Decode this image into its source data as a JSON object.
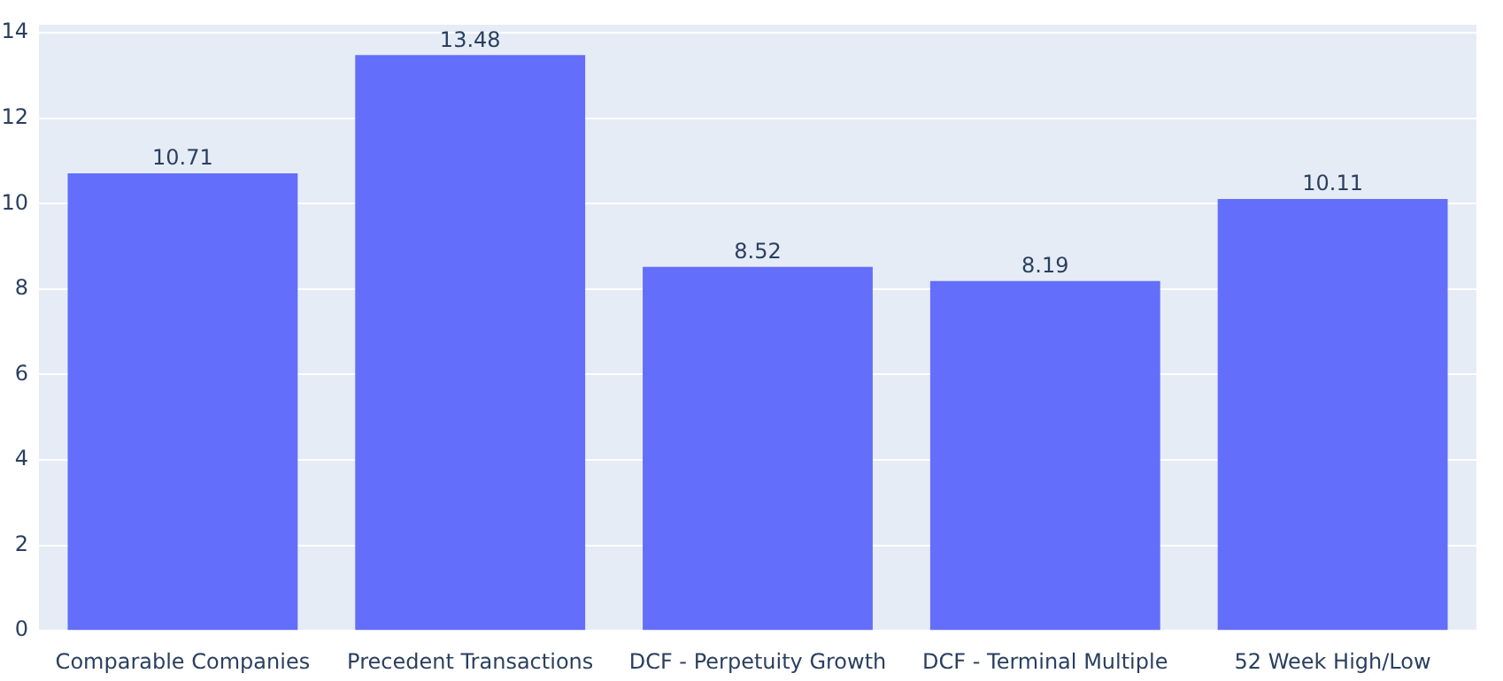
{
  "chart_data": {
    "type": "bar",
    "categories": [
      "Comparable Companies",
      "Precedent Transactions",
      "DCF - Perpetuity Growth",
      "DCF - Terminal Multiple",
      "52 Week High/Low"
    ],
    "values": [
      10.71,
      13.48,
      8.52,
      8.19,
      10.11
    ],
    "color": "#636efa",
    "ylim": [
      0,
      14.19
    ],
    "yticks": [
      0,
      2,
      4,
      6,
      8,
      10,
      12,
      14
    ],
    "grid": "y",
    "data_labels": true
  }
}
